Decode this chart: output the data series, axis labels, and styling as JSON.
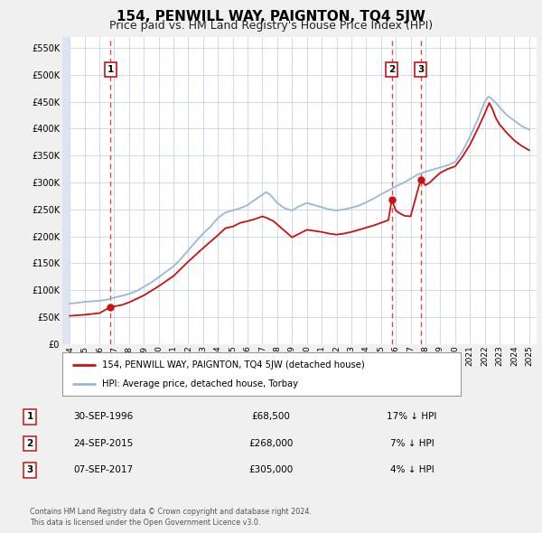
{
  "title": "154, PENWILL WAY, PAIGNTON, TQ4 5JW",
  "subtitle": "Price paid vs. HM Land Registry's House Price Index (HPI)",
  "xlim": [
    1993.5,
    2025.5
  ],
  "ylim": [
    0,
    570000
  ],
  "yticks": [
    0,
    50000,
    100000,
    150000,
    200000,
    250000,
    300000,
    350000,
    400000,
    450000,
    500000,
    550000
  ],
  "ytick_labels": [
    "£0",
    "£50K",
    "£100K",
    "£150K",
    "£200K",
    "£250K",
    "£300K",
    "£350K",
    "£400K",
    "£450K",
    "£500K",
    "£550K"
  ],
  "xticks": [
    1994,
    1995,
    1996,
    1997,
    1998,
    1999,
    2000,
    2001,
    2002,
    2003,
    2004,
    2005,
    2006,
    2007,
    2008,
    2009,
    2010,
    2011,
    2012,
    2013,
    2014,
    2015,
    2016,
    2017,
    2018,
    2019,
    2020,
    2021,
    2022,
    2023,
    2024,
    2025
  ],
  "grid_color": "#c8d4e8",
  "bg_color": "#dce4f0",
  "plot_area_color": "#ffffff",
  "hpi_color": "#99b8d8",
  "price_color": "#cc1111",
  "marker_color": "#cc1111",
  "vline_color": "#dd3333",
  "sale_points": [
    {
      "year": 1996.75,
      "price": 68500,
      "label": "1"
    },
    {
      "year": 2015.73,
      "price": 268000,
      "label": "2"
    },
    {
      "year": 2017.68,
      "price": 305000,
      "label": "3"
    }
  ],
  "legend_label_price": "154, PENWILL WAY, PAIGNTON, TQ4 5JW (detached house)",
  "legend_label_hpi": "HPI: Average price, detached house, Torbay",
  "table_rows": [
    {
      "num": "1",
      "date": "30-SEP-1996",
      "price": "£68,500",
      "pct": "17% ↓ HPI"
    },
    {
      "num": "2",
      "date": "24-SEP-2015",
      "price": "£268,000",
      "pct": "7% ↓ HPI"
    },
    {
      "num": "3",
      "date": "07-SEP-2017",
      "price": "£305,000",
      "pct": "4% ↓ HPI"
    }
  ],
  "footer": "Contains HM Land Registry data © Crown copyright and database right 2024.\nThis data is licensed under the Open Government Licence v3.0.",
  "title_fontsize": 11,
  "subtitle_fontsize": 9,
  "hpi_data": [
    [
      1994.0,
      75000
    ],
    [
      1994.5,
      76000
    ],
    [
      1995.0,
      78000
    ],
    [
      1995.5,
      79000
    ],
    [
      1996.0,
      80000
    ],
    [
      1996.5,
      82000
    ],
    [
      1997.0,
      86000
    ],
    [
      1997.5,
      89000
    ],
    [
      1998.0,
      93000
    ],
    [
      1998.5,
      98000
    ],
    [
      1999.0,
      106000
    ],
    [
      1999.5,
      114000
    ],
    [
      2000.0,
      124000
    ],
    [
      2000.5,
      134000
    ],
    [
      2001.0,
      144000
    ],
    [
      2001.5,
      158000
    ],
    [
      2002.0,
      174000
    ],
    [
      2002.5,
      190000
    ],
    [
      2003.0,
      205000
    ],
    [
      2003.5,
      218000
    ],
    [
      2004.0,
      234000
    ],
    [
      2004.5,
      244000
    ],
    [
      2005.0,
      248000
    ],
    [
      2005.5,
      252000
    ],
    [
      2006.0,
      258000
    ],
    [
      2006.5,
      268000
    ],
    [
      2007.0,
      277000
    ],
    [
      2007.25,
      282000
    ],
    [
      2007.5,
      278000
    ],
    [
      2008.0,
      262000
    ],
    [
      2008.5,
      252000
    ],
    [
      2009.0,
      248000
    ],
    [
      2009.5,
      256000
    ],
    [
      2010.0,
      262000
    ],
    [
      2010.5,
      258000
    ],
    [
      2011.0,
      254000
    ],
    [
      2011.5,
      250000
    ],
    [
      2012.0,
      248000
    ],
    [
      2012.5,
      250000
    ],
    [
      2013.0,
      253000
    ],
    [
      2013.5,
      257000
    ],
    [
      2014.0,
      263000
    ],
    [
      2014.5,
      270000
    ],
    [
      2015.0,
      278000
    ],
    [
      2015.5,
      285000
    ],
    [
      2016.0,
      293000
    ],
    [
      2016.5,
      299000
    ],
    [
      2017.0,
      307000
    ],
    [
      2017.5,
      315000
    ],
    [
      2018.0,
      320000
    ],
    [
      2018.5,
      324000
    ],
    [
      2019.0,
      328000
    ],
    [
      2019.5,
      332000
    ],
    [
      2020.0,
      338000
    ],
    [
      2020.5,
      358000
    ],
    [
      2021.0,
      385000
    ],
    [
      2021.5,
      415000
    ],
    [
      2022.0,
      450000
    ],
    [
      2022.25,
      460000
    ],
    [
      2022.5,
      455000
    ],
    [
      2022.75,
      448000
    ],
    [
      2023.0,
      440000
    ],
    [
      2023.5,
      425000
    ],
    [
      2024.0,
      415000
    ],
    [
      2024.5,
      405000
    ],
    [
      2025.0,
      398000
    ]
  ],
  "price_data": [
    [
      1994.0,
      52000
    ],
    [
      1995.0,
      54000
    ],
    [
      1996.0,
      57000
    ],
    [
      1996.75,
      68500
    ],
    [
      1997.5,
      72000
    ],
    [
      1998.0,
      77000
    ],
    [
      1999.0,
      90000
    ],
    [
      2000.0,
      107000
    ],
    [
      2001.0,
      126000
    ],
    [
      2002.0,
      153000
    ],
    [
      2003.0,
      178000
    ],
    [
      2004.0,
      202000
    ],
    [
      2004.5,
      215000
    ],
    [
      2005.0,
      218000
    ],
    [
      2005.5,
      225000
    ],
    [
      2006.0,
      228000
    ],
    [
      2006.5,
      232000
    ],
    [
      2007.0,
      237000
    ],
    [
      2007.3,
      234000
    ],
    [
      2007.75,
      228000
    ],
    [
      2008.0,
      222000
    ],
    [
      2008.5,
      210000
    ],
    [
      2009.0,
      198000
    ],
    [
      2009.5,
      205000
    ],
    [
      2010.0,
      212000
    ],
    [
      2010.5,
      210000
    ],
    [
      2011.0,
      208000
    ],
    [
      2011.5,
      205000
    ],
    [
      2012.0,
      203000
    ],
    [
      2012.5,
      205000
    ],
    [
      2013.0,
      208000
    ],
    [
      2013.5,
      212000
    ],
    [
      2014.0,
      216000
    ],
    [
      2014.5,
      220000
    ],
    [
      2015.0,
      225000
    ],
    [
      2015.5,
      230000
    ],
    [
      2015.73,
      268000
    ],
    [
      2016.0,
      248000
    ],
    [
      2016.3,
      242000
    ],
    [
      2016.6,
      238000
    ],
    [
      2017.0,
      237000
    ],
    [
      2017.68,
      305000
    ],
    [
      2018.0,
      295000
    ],
    [
      2018.3,
      300000
    ],
    [
      2018.6,
      308000
    ],
    [
      2019.0,
      318000
    ],
    [
      2019.5,
      325000
    ],
    [
      2020.0,
      330000
    ],
    [
      2020.5,
      348000
    ],
    [
      2021.0,
      370000
    ],
    [
      2021.5,
      398000
    ],
    [
      2022.0,
      428000
    ],
    [
      2022.3,
      448000
    ],
    [
      2022.5,
      438000
    ],
    [
      2022.75,
      420000
    ],
    [
      2023.0,
      408000
    ],
    [
      2023.5,
      392000
    ],
    [
      2024.0,
      378000
    ],
    [
      2024.5,
      368000
    ],
    [
      2025.0,
      360000
    ]
  ]
}
